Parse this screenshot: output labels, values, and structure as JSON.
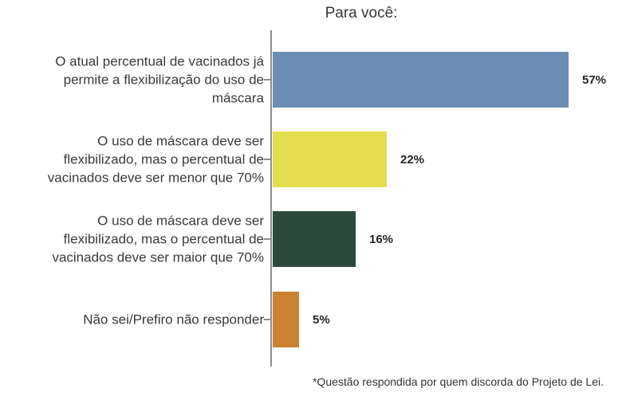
{
  "title": "Para você:",
  "footnote": "*Questão respondida por quem discorda do Projeto de Lei.",
  "chart_data": {
    "type": "bar",
    "orientation": "horizontal",
    "title": "Para você:",
    "categories": [
      "O atual percentual de vacinados já permite a flexibilização do uso de máscara",
      "O uso de máscara deve ser flexibilizado, mas o percentual de vacinados deve ser menor que 70%",
      "O uso de máscara deve ser flexibilizado, mas o percentual de vacinados deve ser maior que 70%",
      "Não sei/Prefiro não responder"
    ],
    "categories_display": [
      "O atual percentual de vacinados já\npermite a flexibilização do uso de\nmáscara",
      "O uso de máscara deve ser\nflexibilizado, mas o percentual de\nvacinados deve ser menor que 70%",
      "O uso de máscara deve ser\nflexibilizado, mas o percentual de\nvacinados deve ser maior que 70%",
      "Não sei/Prefiro não responder"
    ],
    "values": [
      57,
      22,
      16,
      5
    ],
    "value_labels": [
      "57%",
      "22%",
      "16%",
      "5%"
    ],
    "bar_colors": [
      "#6b8cb3",
      "#e5dd50",
      "#2c4a3b",
      "#cb8233"
    ],
    "xlim": [
      0,
      62
    ],
    "grid": false,
    "legend": "none",
    "axis_color": "#8f8f8f",
    "annotations": [
      "*Questão respondida por quem discorda do Projeto de Lei."
    ]
  }
}
